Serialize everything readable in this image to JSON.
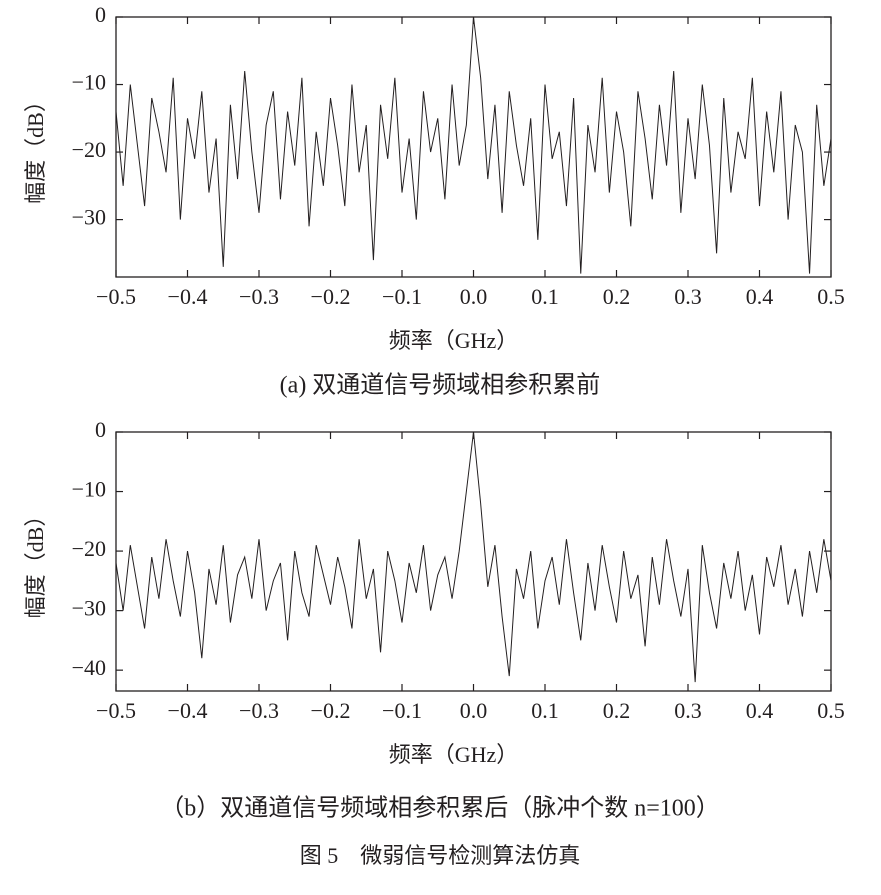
{
  "chart_data": [
    {
      "type": "line",
      "caption": "(a) 双通道信号频域相参积累前",
      "x_label": "频率（GHz）",
      "y_label": "幅度（dB）",
      "xlim": [
        -0.5,
        0.5
      ],
      "ylim": [
        -38.5,
        0
      ],
      "xticks": [
        {
          "value": -0.5,
          "label": "−0.5"
        },
        {
          "value": -0.4,
          "label": "−0.4"
        },
        {
          "value": -0.3,
          "label": "−0.3"
        },
        {
          "value": -0.2,
          "label": "−0.2"
        },
        {
          "value": -0.1,
          "label": "−0.1"
        },
        {
          "value": 0,
          "label": "0.0"
        },
        0.1,
        0.2,
        0.3,
        0.4,
        0.5
      ],
      "yticks": [
        0,
        {
          "value": -10,
          "label": "−10"
        },
        {
          "value": -20,
          "label": "−20"
        },
        {
          "value": -30,
          "label": "−30"
        }
      ],
      "series": [
        {
          "color": "#231f20",
          "x": [
            -0.5,
            -0.49,
            -0.48,
            -0.47,
            -0.46,
            -0.45,
            -0.44,
            -0.43,
            -0.42,
            -0.41,
            -0.4,
            -0.39,
            -0.38,
            -0.37,
            -0.36,
            -0.35,
            -0.34,
            -0.33,
            -0.32,
            -0.31,
            -0.3,
            -0.29,
            -0.28,
            -0.27,
            -0.26,
            -0.25,
            -0.24,
            -0.23,
            -0.22,
            -0.21,
            -0.2,
            -0.19,
            -0.18,
            -0.17,
            -0.16,
            -0.15,
            -0.14,
            -0.13,
            -0.12,
            -0.11,
            -0.1,
            -0.09,
            -0.08,
            -0.07,
            -0.06,
            -0.05,
            -0.04,
            -0.03,
            -0.02,
            -0.01,
            0,
            0.01,
            0.02,
            0.03,
            0.04,
            0.05,
            0.06,
            0.07,
            0.08,
            0.09,
            0.1,
            0.11,
            0.12,
            0.13,
            0.14,
            0.15,
            0.16,
            0.17,
            0.18,
            0.19,
            0.2,
            0.21,
            0.22,
            0.23,
            0.24,
            0.25,
            0.26,
            0.27,
            0.28,
            0.29,
            0.3,
            0.31,
            0.32,
            0.33,
            0.34,
            0.35,
            0.36,
            0.37,
            0.38,
            0.39,
            0.4,
            0.41,
            0.42,
            0.43,
            0.44,
            0.45,
            0.46,
            0.47,
            0.48,
            0.49,
            0.5
          ],
          "values": [
            -14,
            -25,
            -10,
            -19,
            -28,
            -12,
            -17,
            -23,
            -9,
            -30,
            -15,
            -21,
            -11,
            -26,
            -18,
            -37,
            -13,
            -24,
            -8,
            -20,
            -29,
            -16,
            -11,
            -27,
            -14,
            -22,
            -9,
            -31,
            -17,
            -25,
            -12,
            -19,
            -28,
            -10,
            -23,
            -16,
            -36,
            -13,
            -21,
            -9,
            -26,
            -18,
            -30,
            -11,
            -20,
            -15,
            -27,
            -10,
            -22,
            -16,
            0,
            -9,
            -24,
            -13,
            -29,
            -11,
            -19,
            -25,
            -15,
            -33,
            -10,
            -21,
            -17,
            -28,
            -12,
            -38,
            -16,
            -23,
            -9,
            -26,
            -14,
            -20,
            -31,
            -11,
            -18,
            -27,
            -13,
            -22,
            -8,
            -29,
            -15,
            -24,
            -10,
            -19,
            -35,
            -12,
            -26,
            -17,
            -21,
            -9,
            -28,
            -14,
            -23,
            -11,
            -30,
            -16,
            -20,
            -38,
            -13,
            -25,
            -18
          ]
        }
      ]
    },
    {
      "type": "line",
      "caption": "（b）双通道信号频域相参积累后（脉冲个数 n=100）",
      "x_label": "频率（GHz）",
      "y_label": "幅度（dB）",
      "xlim": [
        -0.5,
        0.5
      ],
      "ylim": [
        -43.5,
        0
      ],
      "xticks": [
        {
          "value": -0.5,
          "label": "−0.5"
        },
        {
          "value": -0.4,
          "label": "−0.4"
        },
        {
          "value": -0.3,
          "label": "−0.3"
        },
        {
          "value": -0.2,
          "label": "−0.2"
        },
        {
          "value": -0.1,
          "label": "−0.1"
        },
        {
          "value": 0,
          "label": "0.0"
        },
        0.1,
        0.2,
        0.3,
        0.4,
        0.5
      ],
      "yticks": [
        0,
        {
          "value": -10,
          "label": "−10"
        },
        {
          "value": -20,
          "label": "−20"
        },
        {
          "value": -30,
          "label": "−30"
        },
        {
          "value": -40,
          "label": "−40"
        }
      ],
      "series": [
        {
          "color": "#231f20",
          "x": [
            -0.5,
            -0.49,
            -0.48,
            -0.47,
            -0.46,
            -0.45,
            -0.44,
            -0.43,
            -0.42,
            -0.41,
            -0.4,
            -0.39,
            -0.38,
            -0.37,
            -0.36,
            -0.35,
            -0.34,
            -0.33,
            -0.32,
            -0.31,
            -0.3,
            -0.29,
            -0.28,
            -0.27,
            -0.26,
            -0.25,
            -0.24,
            -0.23,
            -0.22,
            -0.21,
            -0.2,
            -0.19,
            -0.18,
            -0.17,
            -0.16,
            -0.15,
            -0.14,
            -0.13,
            -0.12,
            -0.11,
            -0.1,
            -0.09,
            -0.08,
            -0.07,
            -0.06,
            -0.05,
            -0.04,
            -0.03,
            -0.02,
            -0.01,
            0,
            0.01,
            0.02,
            0.03,
            0.04,
            0.05,
            0.06,
            0.07,
            0.08,
            0.09,
            0.1,
            0.11,
            0.12,
            0.13,
            0.14,
            0.15,
            0.16,
            0.17,
            0.18,
            0.19,
            0.2,
            0.21,
            0.22,
            0.23,
            0.24,
            0.25,
            0.26,
            0.27,
            0.28,
            0.29,
            0.3,
            0.31,
            0.32,
            0.33,
            0.34,
            0.35,
            0.36,
            0.37,
            0.38,
            0.39,
            0.4,
            0.41,
            0.42,
            0.43,
            0.44,
            0.45,
            0.46,
            0.47,
            0.48,
            0.49,
            0.5
          ],
          "values": [
            -22,
            -30,
            -19,
            -26,
            -33,
            -21,
            -28,
            -18,
            -25,
            -31,
            -20,
            -27,
            -38,
            -23,
            -29,
            -19,
            -32,
            -24,
            -21,
            -28,
            -18,
            -30,
            -25,
            -22,
            -35,
            -20,
            -27,
            -31,
            -19,
            -24,
            -29,
            -21,
            -26,
            -33,
            -18,
            -28,
            -23,
            -37,
            -20,
            -25,
            -32,
            -22,
            -27,
            -19,
            -30,
            -24,
            -21,
            -28,
            -20,
            -10,
            0,
            -12,
            -26,
            -19,
            -31,
            -41,
            -23,
            -28,
            -20,
            -33,
            -25,
            -21,
            -29,
            -18,
            -27,
            -35,
            -22,
            -30,
            -19,
            -26,
            -32,
            -20,
            -28,
            -24,
            -36,
            -21,
            -29,
            -18,
            -25,
            -31,
            -23,
            -42,
            -19,
            -27,
            -33,
            -22,
            -28,
            -20,
            -30,
            -24,
            -34,
            -21,
            -26,
            -19,
            -29,
            -23,
            -31,
            -20,
            -27,
            -18,
            -25
          ]
        }
      ]
    }
  ],
  "figure_caption": "图 5　微弱信号检测算法仿真"
}
